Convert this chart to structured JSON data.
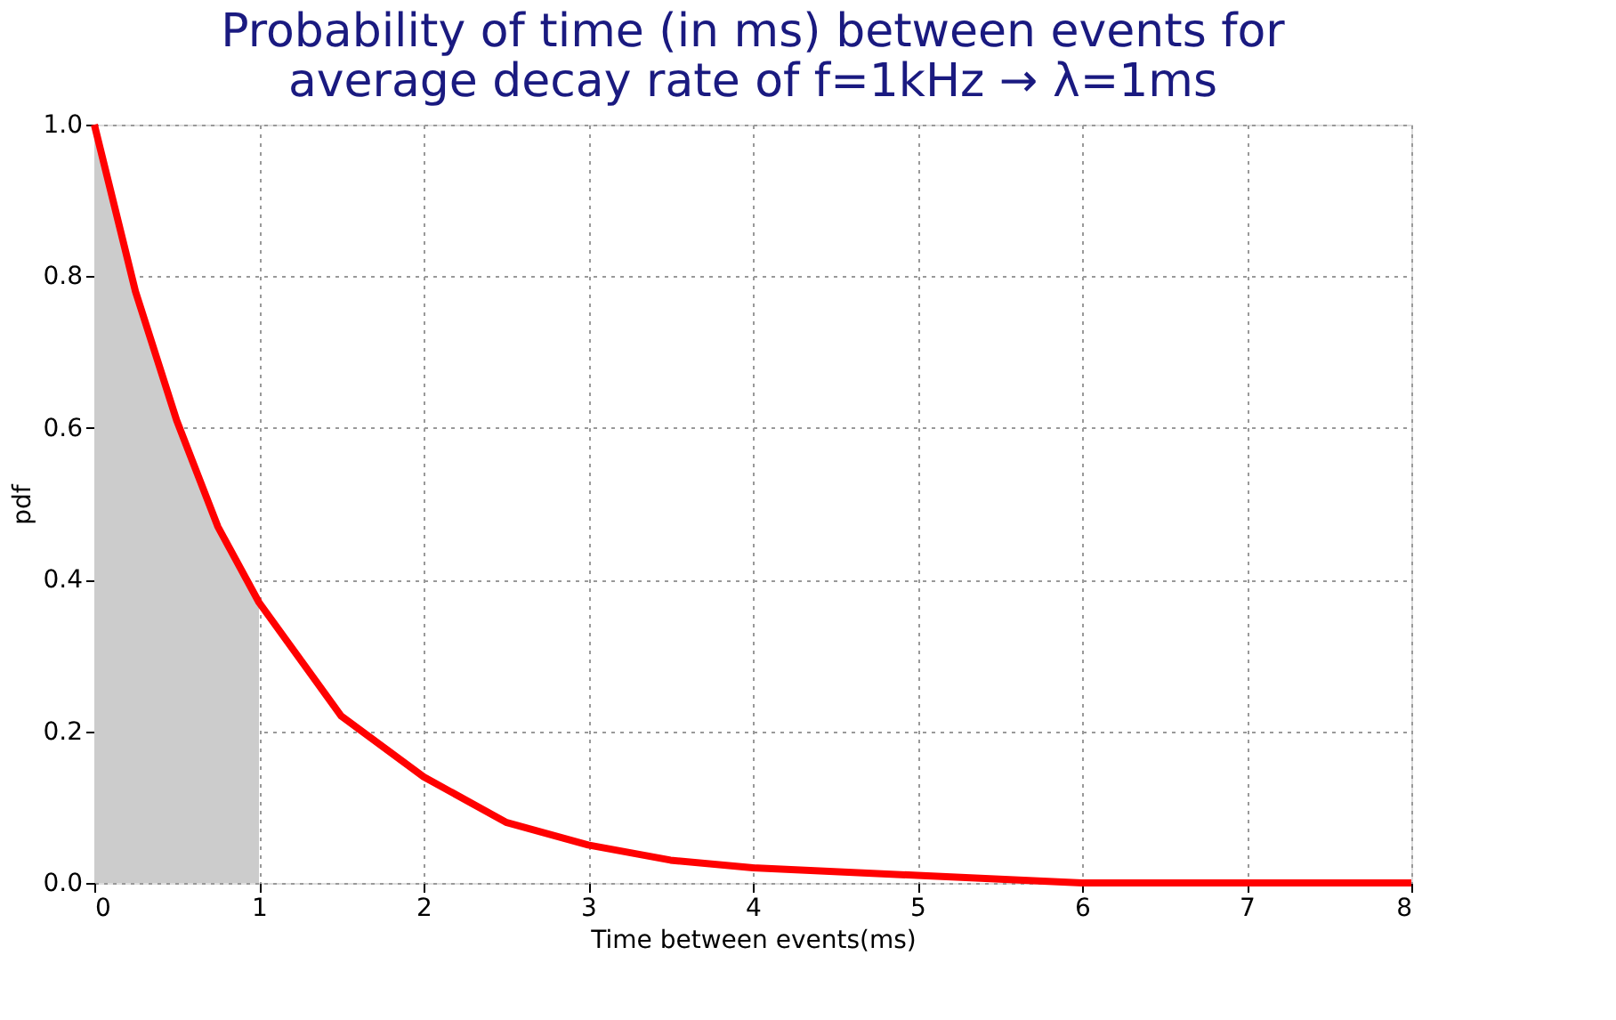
{
  "chart_data": {
    "type": "line",
    "title": [
      "Probability of time (in ms) between events for",
      "average decay rate of f=1kHz → λ=1ms"
    ],
    "xlabel": "Time between events(ms)",
    "ylabel": "pdf",
    "series": [
      {
        "type": "area",
        "color": "#cccccc",
        "x": [
          0,
          0.25,
          0.5,
          0.75,
          1
        ],
        "values": [
          1.0,
          0.78,
          0.61,
          0.47,
          0.37
        ]
      },
      {
        "color": "#ff0000",
        "x": [
          0,
          0.25,
          0.5,
          0.75,
          1,
          1.5,
          2,
          2.5,
          3,
          3.5,
          4,
          5,
          6,
          7,
          8
        ],
        "values": [
          1.0,
          0.78,
          0.61,
          0.47,
          0.37,
          0.22,
          0.14,
          0.08,
          0.05,
          0.03,
          0.02,
          0.01,
          0.0,
          0.0,
          0.0
        ]
      }
    ],
    "xlim": [
      0,
      8
    ],
    "xticks": [
      0,
      1,
      2,
      3,
      4,
      5,
      6,
      7,
      8
    ],
    "ylim": [
      0,
      1
    ],
    "yticks": [
      {
        "value": 0,
        "label": "0.0"
      },
      {
        "value": 0.2,
        "label": "0.2"
      },
      {
        "value": 0.4,
        "label": "0.4"
      },
      {
        "value": 0.6,
        "label": "0.6"
      },
      {
        "value": 0.8,
        "label": "0.8"
      },
      {
        "value": 1,
        "label": "1.0"
      }
    ],
    "grid": true,
    "line_style": "solid"
  }
}
